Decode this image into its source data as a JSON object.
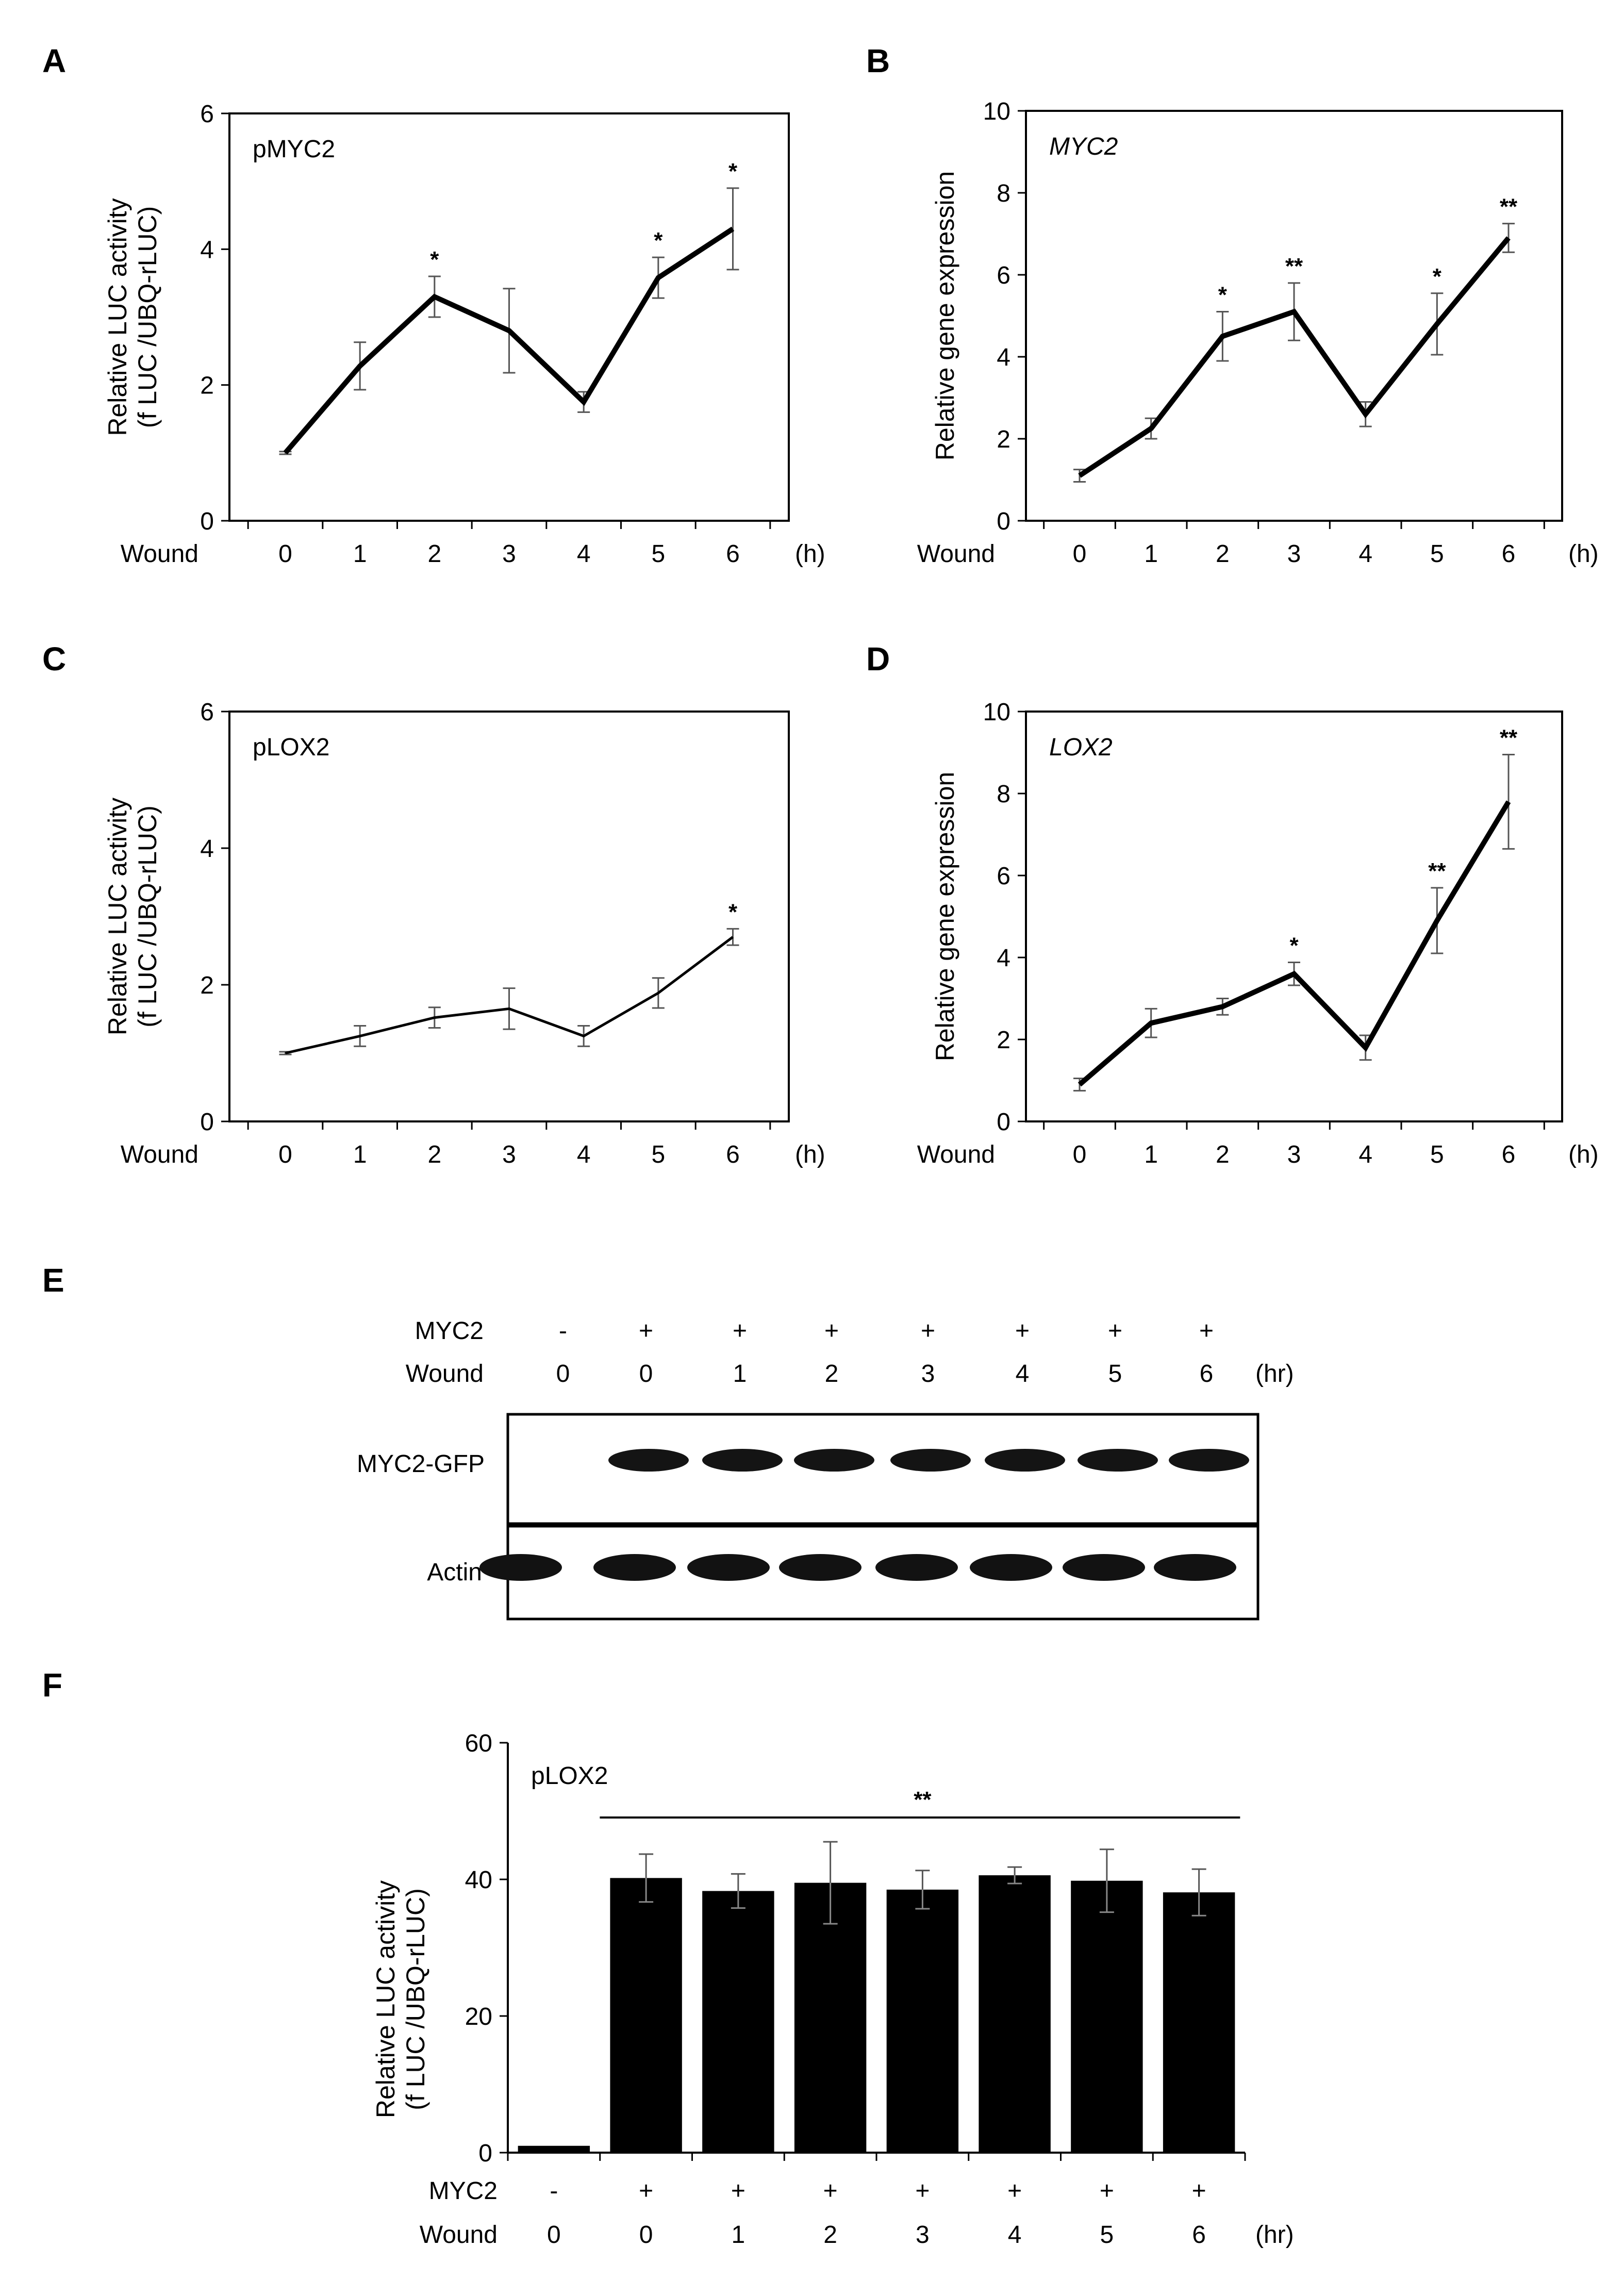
{
  "chart_data": [
    {
      "id": "A",
      "type": "line",
      "label_text": "A",
      "annotation": "pMYC2",
      "italic": false,
      "ylabel": [
        "Relative LUC activity",
        "(f LUC /UBQ-rLUC)"
      ],
      "xlabel": "Wound",
      "unit": "(h)",
      "categories": [
        "0",
        "1",
        "2",
        "3",
        "4",
        "5",
        "6"
      ],
      "values": [
        1.0,
        2.28,
        3.3,
        2.8,
        1.75,
        3.58,
        4.3
      ],
      "errors": [
        0.02,
        0.35,
        0.3,
        0.62,
        0.15,
        0.3,
        0.6
      ],
      "sig": [
        "",
        "",
        "*",
        "",
        "",
        "*",
        "*"
      ],
      "ylim": [
        0,
        6
      ],
      "yticks": [
        "0",
        "2",
        "4",
        "6"
      ]
    },
    {
      "id": "B",
      "type": "line",
      "label_text": "B",
      "annotation": "MYC2",
      "italic": true,
      "ylabel": [
        "Relative gene expression"
      ],
      "xlabel": "Wound",
      "unit": "(h)",
      "categories": [
        "0",
        "1",
        "2",
        "3",
        "4",
        "5",
        "6"
      ],
      "values": [
        1.1,
        2.25,
        4.5,
        5.1,
        2.6,
        4.8,
        6.9
      ],
      "errors": [
        0.15,
        0.25,
        0.6,
        0.7,
        0.3,
        0.75,
        0.35
      ],
      "sig": [
        "",
        "",
        "*",
        "**",
        "",
        "*",
        "**"
      ],
      "ylim": [
        0,
        10
      ],
      "yticks": [
        "0",
        "2",
        "4",
        "6",
        "8",
        "10"
      ]
    },
    {
      "id": "C",
      "type": "line",
      "label_text": "C",
      "annotation": "pLOX2",
      "italic": false,
      "ylabel": [
        "Relative LUC activity",
        "(f LUC /UBQ-rLUC)"
      ],
      "xlabel": "Wound",
      "unit": "(h)",
      "categories": [
        "0",
        "1",
        "2",
        "3",
        "4",
        "5",
        "6"
      ],
      "values": [
        1.0,
        1.25,
        1.52,
        1.65,
        1.25,
        1.88,
        2.7
      ],
      "errors": [
        0.02,
        0.15,
        0.15,
        0.3,
        0.15,
        0.22,
        0.12
      ],
      "sig": [
        "",
        "",
        "",
        "",
        "",
        "",
        "*"
      ],
      "ylim": [
        0,
        6
      ],
      "yticks": [
        "0",
        "2",
        "4",
        "6"
      ]
    },
    {
      "id": "D",
      "type": "line",
      "label_text": "D",
      "annotation": "LOX2",
      "italic": true,
      "ylabel": [
        "Relative gene expression"
      ],
      "xlabel": "Wound",
      "unit": "(h)",
      "categories": [
        "0",
        "1",
        "2",
        "3",
        "4",
        "5",
        "6"
      ],
      "values": [
        0.9,
        2.4,
        2.8,
        3.6,
        1.8,
        4.9,
        7.8
      ],
      "errors": [
        0.15,
        0.35,
        0.2,
        0.28,
        0.3,
        0.8,
        1.15
      ],
      "sig": [
        "",
        "",
        "",
        "*",
        "",
        "**",
        "**"
      ],
      "ylim": [
        0,
        10
      ],
      "yticks": [
        "0",
        "2",
        "4",
        "6",
        "8",
        "10"
      ]
    },
    {
      "id": "F",
      "type": "bar",
      "label_text": "F",
      "annotation": "pLOX2",
      "italic": false,
      "ylabel": [
        "Relative LUC activity",
        "(f LUC /UBQ-rLUC)"
      ],
      "row_labels": [
        "MYC2",
        "Wound"
      ],
      "unit": "(hr)",
      "myc2": [
        "-",
        "+",
        "+",
        "+",
        "+",
        "+",
        "+",
        "+"
      ],
      "categories": [
        "0",
        "0",
        "1",
        "2",
        "3",
        "4",
        "5",
        "6"
      ],
      "values": [
        1.0,
        40.2,
        38.3,
        39.5,
        38.5,
        40.6,
        39.8,
        38.1
      ],
      "errors": [
        0.1,
        3.5,
        2.5,
        6.0,
        2.8,
        1.2,
        4.6,
        3.4
      ],
      "group_sig": "**",
      "ylim": [
        0,
        60
      ],
      "yticks": [
        "0",
        "20",
        "40",
        "60"
      ]
    }
  ],
  "blot": {
    "label_text": "E",
    "myc2_label": "MYC2",
    "wound_label": "Wound",
    "myc2": [
      "-",
      "+",
      "+",
      "+",
      "+",
      "+",
      "+",
      "+"
    ],
    "wound": [
      "0",
      "0",
      "1",
      "2",
      "3",
      "4",
      "5",
      "6"
    ],
    "unit": "(hr)",
    "rows": [
      "MYC2-GFP",
      "Actin"
    ],
    "myc2gfp_present": [
      0,
      1,
      1,
      1,
      1,
      1,
      1,
      1
    ],
    "actin_present": [
      1,
      1,
      1,
      1,
      1,
      1,
      1,
      1
    ]
  }
}
